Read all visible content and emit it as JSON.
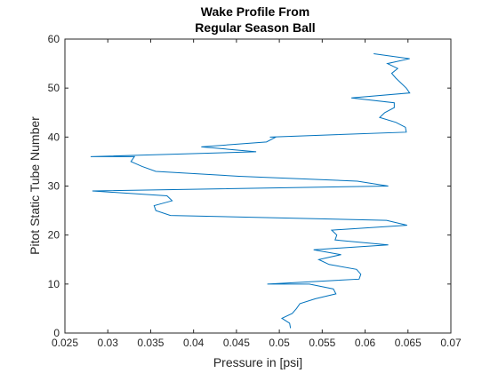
{
  "chart_data": {
    "type": "line",
    "title_lines": [
      "Wake Profile From",
      "Regular Season Ball"
    ],
    "xlabel": "Pressure in [psi]",
    "ylabel": "Pitot Static Tube Number",
    "xlim": [
      0.025,
      0.07
    ],
    "ylim": [
      0,
      60
    ],
    "xticks": [
      "0.025",
      "0.03",
      "0.035",
      "0.04",
      "0.045",
      "0.05",
      "0.055",
      "0.06",
      "0.065",
      "0.07"
    ],
    "yticks": [
      "0",
      "10",
      "20",
      "30",
      "40",
      "50",
      "60"
    ],
    "grid": false,
    "line_color": "#0072BD",
    "series": [
      {
        "x": [
          0.0513,
          0.0512,
          0.0503,
          0.0515,
          0.052,
          0.0524,
          0.0542,
          0.0566,
          0.0563,
          0.0535,
          0.0486,
          0.0593,
          0.0595,
          0.059,
          0.0558,
          0.0546,
          0.0572,
          0.054,
          0.0627,
          0.0565,
          0.0567,
          0.0561,
          0.0649,
          0.0625,
          0.0373,
          0.0356,
          0.0354,
          0.0375,
          0.0369,
          0.0282,
          0.0627,
          0.0591,
          0.0453,
          0.0356,
          0.034,
          0.0327,
          0.0331,
          0.028,
          0.0473,
          0.0409,
          0.0485,
          0.0496,
          0.0489,
          0.0648,
          0.0647,
          0.0636,
          0.0617,
          0.0623,
          0.0634,
          0.0634,
          0.0584,
          0.0652,
          0.0648,
          0.0636,
          0.0631,
          0.0638,
          0.0626,
          0.0652,
          0.061
        ],
        "y": [
          1,
          2,
          3,
          4,
          5,
          6,
          7,
          8,
          9,
          10,
          10,
          11,
          12,
          13,
          14,
          15,
          16,
          17,
          18,
          19,
          20,
          21,
          22,
          23,
          24,
          25,
          26,
          27,
          28,
          29,
          30,
          31,
          32,
          33,
          34,
          35,
          36,
          36,
          37,
          38,
          39,
          40,
          40,
          41,
          42,
          43,
          44,
          45,
          46,
          47,
          48,
          49,
          50,
          52,
          53,
          54,
          55,
          56,
          57
        ]
      }
    ]
  }
}
